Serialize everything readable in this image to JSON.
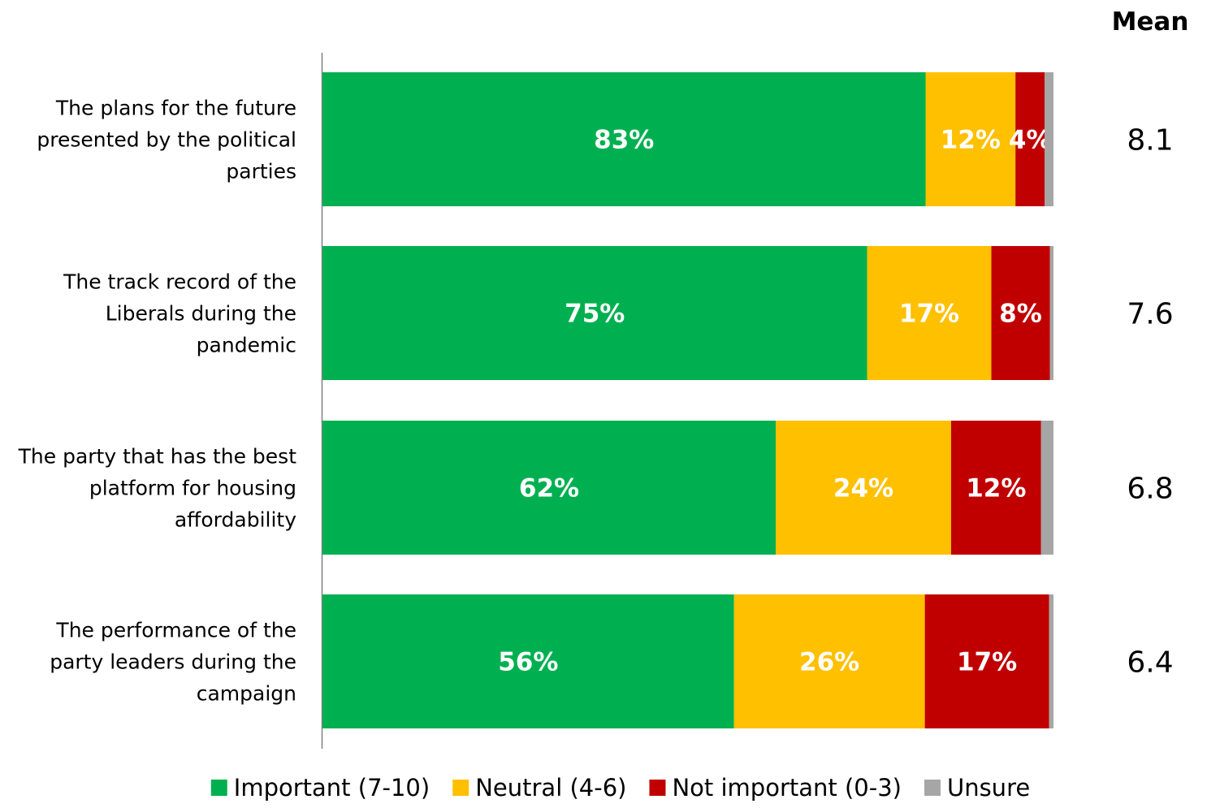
{
  "chart_data": {
    "type": "bar",
    "orientation": "horizontal",
    "stacked": true,
    "title": "",
    "xlabel": "",
    "ylabel": "",
    "xlim": [
      0,
      100
    ],
    "grid": false,
    "legend_position": "bottom",
    "categories": [
      [
        "The plans for the future",
        "presented by the political",
        "parties"
      ],
      [
        "The track record of the",
        "Liberals during the",
        "pandemic"
      ],
      [
        "The party that has the best",
        "platform for housing",
        "affordability"
      ],
      [
        "The performance of the",
        "party leaders during the",
        "campaign"
      ]
    ],
    "series": [
      {
        "name": "Important (7-10)",
        "color": "#00B050",
        "values": [
          82.5,
          74.5,
          62.0,
          56.3
        ],
        "labels": [
          "83%",
          "75%",
          "62%",
          "56%"
        ]
      },
      {
        "name": "Neutral (4-6)",
        "color": "#FFC000",
        "values": [
          12.3,
          17.0,
          24.0,
          26.1
        ],
        "labels": [
          "12%",
          "17%",
          "24%",
          "26%"
        ]
      },
      {
        "name": "Not important (0-3)",
        "color": "#C00000",
        "values": [
          4.0,
          8.0,
          12.3,
          17.0
        ],
        "labels": [
          "4%",
          "8%",
          "12%",
          "17%"
        ]
      },
      {
        "name": "Unsure",
        "color": "#A6A6A6",
        "values": [
          1.2,
          0.5,
          1.7,
          0.6
        ],
        "labels": [
          "",
          "",
          "",
          ""
        ]
      }
    ],
    "mean": {
      "header": "Mean",
      "values": [
        "8.1",
        "7.6",
        "6.8",
        "6.4"
      ]
    }
  }
}
